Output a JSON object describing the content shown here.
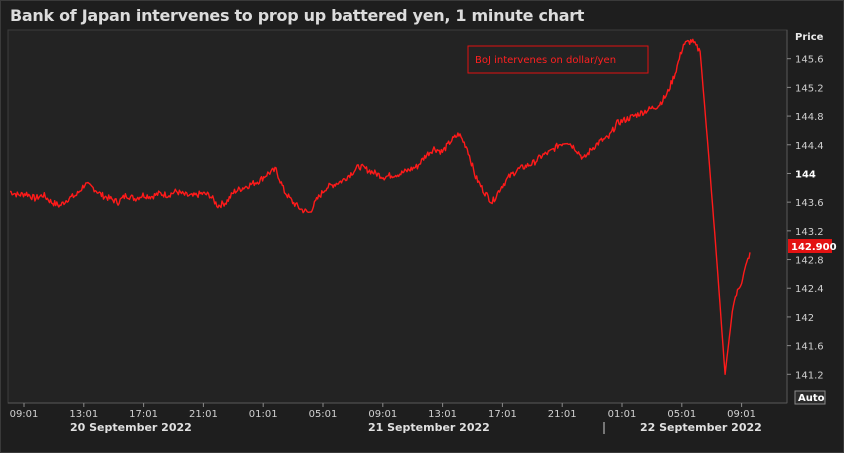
{
  "title": "Bank of Japan intervenes to prop up battered yen, 1 minute chart",
  "price_header": "Price",
  "auto_label": "Auto",
  "last_price_label": "142.900",
  "annotation": "BoJ intervenes on dollar/yen",
  "colors": {
    "series": "#ff1a1a",
    "background": "#232323",
    "annotation": "#ff2020"
  },
  "date_labels": [
    "20 September 2022",
    "21 September 2022",
    "22 September 2022"
  ],
  "chart_data": {
    "type": "line",
    "title": "Bank of Japan intervenes to prop up battered yen, 1 minute chart",
    "xlabel": "",
    "ylabel": "Price",
    "ylim": [
      140.8,
      146.0
    ],
    "y_ticks": [
      141.2,
      141.6,
      142,
      142.4,
      142.8,
      143.2,
      143.6,
      144,
      144.4,
      144.8,
      145.2,
      145.6
    ],
    "x_ticks": [
      "09:01",
      "13:01",
      "17:01",
      "21:01",
      "01:01",
      "05:01",
      "09:01",
      "13:01",
      "17:01",
      "21:01",
      "01:01",
      "05:01",
      "09:01"
    ],
    "last_value": 142.9,
    "grid": false,
    "series": [
      {
        "values": [
          [
            0,
            143.75
          ],
          [
            1,
            143.7
          ],
          [
            2,
            143.72
          ],
          [
            3,
            143.65
          ],
          [
            4,
            143.7
          ],
          [
            5,
            143.6
          ],
          [
            6,
            143.55
          ],
          [
            7,
            143.65
          ],
          [
            8,
            143.7
          ],
          [
            9,
            143.85
          ],
          [
            10,
            143.8
          ],
          [
            11,
            143.7
          ],
          [
            12,
            143.65
          ],
          [
            13,
            143.6
          ],
          [
            14,
            143.7
          ],
          [
            15,
            143.65
          ],
          [
            16,
            143.7
          ],
          [
            17,
            143.68
          ],
          [
            18,
            143.72
          ],
          [
            19,
            143.7
          ],
          [
            20,
            143.75
          ],
          [
            21,
            143.7
          ],
          [
            22,
            143.68
          ],
          [
            23,
            143.72
          ],
          [
            24,
            143.7
          ],
          [
            25,
            143.55
          ],
          [
            26,
            143.6
          ],
          [
            27,
            143.75
          ],
          [
            28,
            143.8
          ],
          [
            29,
            143.85
          ],
          [
            30,
            143.9
          ],
          [
            31,
            144.0
          ],
          [
            32,
            144.05
          ],
          [
            33,
            143.75
          ],
          [
            34,
            143.6
          ],
          [
            35,
            143.5
          ],
          [
            36,
            143.45
          ],
          [
            37,
            143.65
          ],
          [
            38,
            143.8
          ],
          [
            39,
            143.85
          ],
          [
            40,
            143.9
          ],
          [
            41,
            144.0
          ],
          [
            42,
            144.1
          ],
          [
            43,
            144.05
          ],
          [
            44,
            144.0
          ],
          [
            45,
            143.95
          ],
          [
            46,
            143.98
          ],
          [
            47,
            144.0
          ],
          [
            48,
            144.05
          ],
          [
            49,
            144.1
          ],
          [
            50,
            144.25
          ],
          [
            51,
            144.35
          ],
          [
            52,
            144.3
          ],
          [
            53,
            144.45
          ],
          [
            54,
            144.55
          ],
          [
            55,
            144.35
          ],
          [
            56,
            143.95
          ],
          [
            57,
            143.75
          ],
          [
            58,
            143.6
          ],
          [
            59,
            143.8
          ],
          [
            60,
            143.95
          ],
          [
            61,
            144.05
          ],
          [
            62,
            144.1
          ],
          [
            63,
            144.15
          ],
          [
            64,
            144.25
          ],
          [
            65,
            144.3
          ],
          [
            66,
            144.4
          ],
          [
            67,
            144.45
          ],
          [
            68,
            144.35
          ],
          [
            69,
            144.2
          ],
          [
            70,
            144.35
          ],
          [
            71,
            144.45
          ],
          [
            72,
            144.5
          ],
          [
            73,
            144.7
          ],
          [
            74,
            144.75
          ],
          [
            75,
            144.8
          ],
          [
            76,
            144.85
          ],
          [
            77,
            144.9
          ],
          [
            78,
            144.95
          ],
          [
            79,
            145.1
          ],
          [
            80,
            145.4
          ],
          [
            81,
            145.8
          ],
          [
            82,
            145.85
          ],
          [
            83,
            145.7
          ],
          [
            84,
            144.3
          ],
          [
            85,
            142.8
          ],
          [
            86,
            141.2
          ],
          [
            87,
            142.2
          ],
          [
            88,
            142.5
          ],
          [
            89,
            142.9
          ]
        ]
      }
    ]
  }
}
